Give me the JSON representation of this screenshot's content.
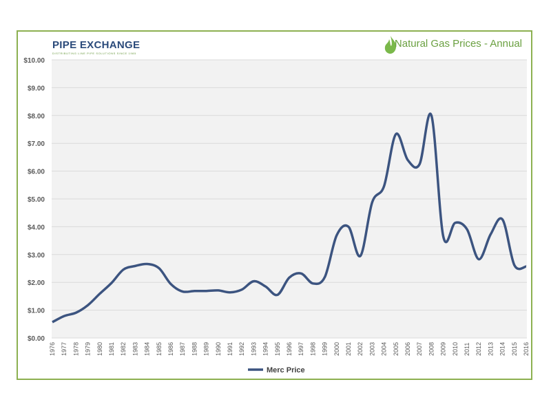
{
  "logo": {
    "name": "PIPE EXCHANGE",
    "tagline": "DISTRIBUTING LINE PIPE SOLUTIONS SINCE 1985"
  },
  "title": "Natural Gas Prices - Annual",
  "colors": {
    "line": "#3c5480",
    "border": "#8cb050",
    "plot_bg": "#f2f2f2",
    "title": "#6aa040"
  },
  "chart_data": {
    "type": "line",
    "title": "Natural Gas Prices - Annual",
    "xlabel": "",
    "ylabel": "",
    "ylim": [
      0,
      10
    ],
    "yticks": [
      "$0.00",
      "$1.00",
      "$2.00",
      "$3.00",
      "$4.00",
      "$5.00",
      "$6.00",
      "$7.00",
      "$8.00",
      "$9.00",
      "$10.00"
    ],
    "grid": true,
    "legend": "bottom",
    "x": [
      1976,
      1977,
      1978,
      1979,
      1980,
      1981,
      1982,
      1983,
      1984,
      1985,
      1986,
      1987,
      1988,
      1989,
      1990,
      1991,
      1992,
      1993,
      1994,
      1995,
      1996,
      1997,
      1998,
      1999,
      2000,
      2001,
      2002,
      2003,
      2004,
      2005,
      2006,
      2007,
      2008,
      2009,
      2010,
      2011,
      2012,
      2013,
      2014,
      2015,
      2016
    ],
    "series": [
      {
        "name": "Merc Price",
        "values": [
          0.57,
          0.79,
          0.91,
          1.18,
          1.59,
          1.98,
          2.46,
          2.59,
          2.66,
          2.51,
          1.94,
          1.67,
          1.69,
          1.69,
          1.71,
          1.64,
          1.74,
          2.04,
          1.85,
          1.55,
          2.17,
          2.32,
          1.96,
          2.19,
          3.69,
          4.0,
          2.95,
          4.88,
          5.46,
          7.33,
          6.4,
          6.25,
          8.0,
          3.65,
          4.14,
          3.91,
          2.83,
          3.73,
          4.26,
          2.62,
          2.57
        ]
      }
    ]
  }
}
